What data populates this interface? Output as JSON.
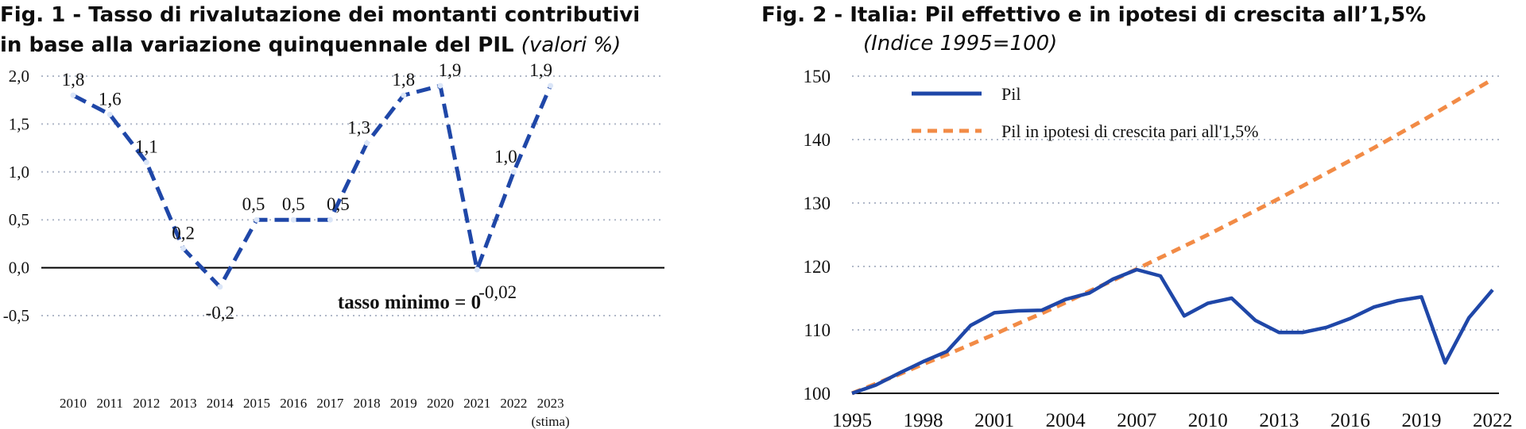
{
  "chart_data": [
    {
      "type": "line",
      "title": "Fig. 1 - Tasso di rivalutazione dei montanti contributivi",
      "title_line2": "in base alla variazione quinquennale del PIL",
      "subtitle": "(valori %)",
      "categories": [
        "2010",
        "2011",
        "2012",
        "2013",
        "2014",
        "2015",
        "2016",
        "2017",
        "2018",
        "2019",
        "2020",
        "2021",
        "2022",
        "2023"
      ],
      "category_note": "(stima)",
      "series": [
        {
          "values": [
            1.8,
            1.6,
            1.1,
            0.2,
            -0.2,
            0.5,
            0.5,
            0.5,
            1.3,
            1.8,
            1.9,
            -0.02,
            1.0,
            1.9
          ],
          "labels": [
            "1,8",
            "1,6",
            "1,1",
            "0,2",
            "-0,2",
            "0,5",
            "0,5",
            "0,5",
            "1,3",
            "1,8",
            "1,9",
            "-0,02",
            "1,0",
            "1,9"
          ],
          "style": "dashed",
          "color": "#1f47a8"
        }
      ],
      "yticks": [
        "-0,5",
        "0,0",
        "0,5",
        "1,0",
        "1,5",
        "2,0"
      ],
      "ytick_values": [
        -0.5,
        0,
        0.5,
        1.0,
        1.5,
        2.0
      ],
      "ylim": [
        -0.5,
        2.0
      ],
      "annotation": "tasso minimo = 0",
      "grid": "horizontal dotted"
    },
    {
      "type": "line",
      "title": "Fig. 2 - Italia: Pil effettivo e in ipotesi di crescita all’1,5%",
      "subtitle": "(Indice 1995=100)",
      "x": [
        1995,
        1996,
        1997,
        1998,
        1999,
        2000,
        2001,
        2002,
        2003,
        2004,
        2005,
        2006,
        2007,
        2008,
        2009,
        2010,
        2011,
        2012,
        2013,
        2014,
        2015,
        2016,
        2017,
        2018,
        2019,
        2020,
        2021,
        2022
      ],
      "xticks": [
        "1995",
        "1998",
        "2001",
        "2004",
        "2007",
        "2010",
        "2013",
        "2016",
        "2019",
        "2022"
      ],
      "xtick_values": [
        1995,
        1998,
        2001,
        2004,
        2007,
        2010,
        2013,
        2016,
        2019,
        2022
      ],
      "yticks": [
        "100",
        "110",
        "120",
        "130",
        "140",
        "150"
      ],
      "ytick_values": [
        100,
        110,
        120,
        130,
        140,
        150
      ],
      "ylim": [
        100,
        150
      ],
      "legend_position": "top-left",
      "series": [
        {
          "name": "Pil",
          "color": "#1f47a8",
          "style": "solid",
          "values": [
            100,
            101.3,
            103.2,
            105.0,
            106.6,
            110.7,
            112.7,
            113.0,
            113.1,
            114.8,
            115.8,
            118.0,
            119.5,
            118.5,
            112.2,
            114.2,
            115.0,
            111.5,
            109.6,
            109.6,
            110.4,
            111.8,
            113.6,
            114.6,
            115.2,
            104.8,
            111.9,
            116.3
          ]
        },
        {
          "name": "Pil in ipotesi di crescita pari all'1,5%",
          "color": "#f28b46",
          "style": "dashed",
          "values": [
            100,
            101.5,
            103.0,
            104.6,
            106.1,
            107.7,
            109.3,
            111.0,
            112.6,
            114.3,
            116.1,
            117.8,
            119.6,
            121.4,
            123.2,
            125.0,
            126.9,
            128.8,
            130.7,
            132.7,
            134.7,
            136.7,
            138.7,
            140.8,
            142.9,
            145.1,
            147.3,
            149.5
          ]
        }
      ]
    }
  ]
}
